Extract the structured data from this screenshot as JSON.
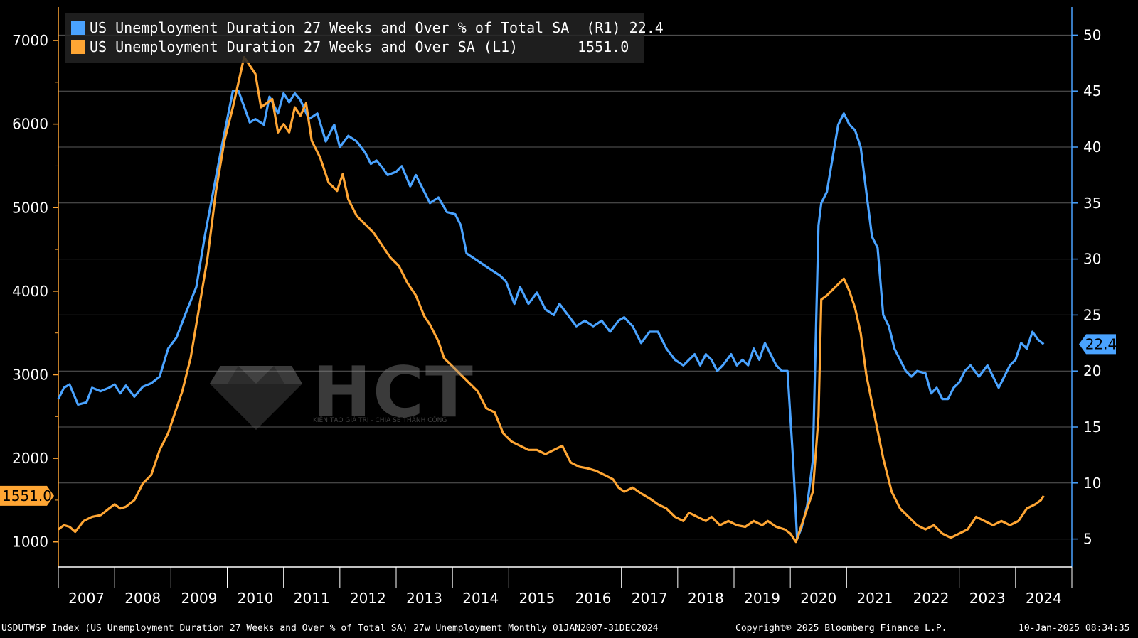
{
  "chart_data": {
    "type": "line",
    "x_range": [
      2007.0,
      2025.0
    ],
    "x_tick_labels": [
      "2007",
      "2008",
      "2009",
      "2010",
      "2011",
      "2012",
      "2013",
      "2014",
      "2015",
      "2016",
      "2017",
      "2018",
      "2019",
      "2020",
      "2021",
      "2022",
      "2023",
      "2024"
    ],
    "y_left": {
      "range": [
        700,
        7400
      ],
      "ticks": [
        1000,
        2000,
        3000,
        4000,
        5000,
        6000,
        7000
      ]
    },
    "y_right": {
      "range": [
        2.5,
        52.5
      ],
      "ticks": [
        5,
        10,
        15,
        20,
        25,
        30,
        35,
        40,
        45,
        50
      ]
    },
    "series": [
      {
        "name": "US Unemployment Duration 27 Weeks and Over % of Total SA",
        "axis": "right",
        "axis_tag": "(R1)",
        "last_value": "22.4",
        "color": "#4aa3ff",
        "points": [
          [
            2007.0,
            17.5
          ],
          [
            2007.1,
            18.5
          ],
          [
            2007.2,
            18.8
          ],
          [
            2007.35,
            17.0
          ],
          [
            2007.5,
            17.2
          ],
          [
            2007.6,
            18.5
          ],
          [
            2007.75,
            18.2
          ],
          [
            2007.9,
            18.5
          ],
          [
            2008.0,
            18.8
          ],
          [
            2008.1,
            18.0
          ],
          [
            2008.2,
            18.7
          ],
          [
            2008.35,
            17.7
          ],
          [
            2008.5,
            18.6
          ],
          [
            2008.65,
            18.9
          ],
          [
            2008.8,
            19.5
          ],
          [
            2008.95,
            22.0
          ],
          [
            2009.1,
            23.0
          ],
          [
            2009.25,
            25.0
          ],
          [
            2009.45,
            27.5
          ],
          [
            2009.6,
            32.0
          ],
          [
            2009.75,
            36.0
          ],
          [
            2009.9,
            40.0
          ],
          [
            2010.0,
            42.5
          ],
          [
            2010.1,
            45.0
          ],
          [
            2010.2,
            45.0
          ],
          [
            2010.4,
            42.2
          ],
          [
            2010.5,
            42.5
          ],
          [
            2010.65,
            42.0
          ],
          [
            2010.75,
            44.5
          ],
          [
            2010.9,
            43.0
          ],
          [
            2011.0,
            44.8
          ],
          [
            2011.1,
            44.0
          ],
          [
            2011.2,
            44.8
          ],
          [
            2011.3,
            44.2
          ],
          [
            2011.45,
            42.5
          ],
          [
            2011.6,
            43.0
          ],
          [
            2011.75,
            40.5
          ],
          [
            2011.9,
            42.0
          ],
          [
            2012.0,
            40.0
          ],
          [
            2012.15,
            41.0
          ],
          [
            2012.3,
            40.5
          ],
          [
            2012.45,
            39.5
          ],
          [
            2012.55,
            38.5
          ],
          [
            2012.65,
            38.8
          ],
          [
            2012.75,
            38.2
          ],
          [
            2012.85,
            37.5
          ],
          [
            2013.0,
            37.8
          ],
          [
            2013.1,
            38.3
          ],
          [
            2013.25,
            36.5
          ],
          [
            2013.35,
            37.5
          ],
          [
            2013.5,
            36.0
          ],
          [
            2013.6,
            35.0
          ],
          [
            2013.75,
            35.5
          ],
          [
            2013.9,
            34.2
          ],
          [
            2014.05,
            34.0
          ],
          [
            2014.15,
            33.0
          ],
          [
            2014.25,
            30.5
          ],
          [
            2014.4,
            30.0
          ],
          [
            2014.55,
            29.5
          ],
          [
            2014.7,
            29.0
          ],
          [
            2014.85,
            28.5
          ],
          [
            2014.95,
            28.0
          ],
          [
            2015.1,
            26.0
          ],
          [
            2015.2,
            27.5
          ],
          [
            2015.35,
            26.0
          ],
          [
            2015.5,
            27.0
          ],
          [
            2015.65,
            25.5
          ],
          [
            2015.8,
            25.0
          ],
          [
            2015.9,
            26.0
          ],
          [
            2016.05,
            25.0
          ],
          [
            2016.2,
            24.0
          ],
          [
            2016.35,
            24.5
          ],
          [
            2016.5,
            24.0
          ],
          [
            2016.65,
            24.5
          ],
          [
            2016.8,
            23.5
          ],
          [
            2016.95,
            24.5
          ],
          [
            2017.05,
            24.8
          ],
          [
            2017.2,
            24.0
          ],
          [
            2017.35,
            22.5
          ],
          [
            2017.5,
            23.5
          ],
          [
            2017.65,
            23.5
          ],
          [
            2017.8,
            22.0
          ],
          [
            2017.95,
            21.0
          ],
          [
            2018.1,
            20.5
          ],
          [
            2018.2,
            21.0
          ],
          [
            2018.3,
            21.5
          ],
          [
            2018.4,
            20.5
          ],
          [
            2018.5,
            21.5
          ],
          [
            2018.6,
            21.0
          ],
          [
            2018.7,
            20.0
          ],
          [
            2018.8,
            20.5
          ],
          [
            2018.95,
            21.5
          ],
          [
            2019.05,
            20.5
          ],
          [
            2019.15,
            21.0
          ],
          [
            2019.25,
            20.5
          ],
          [
            2019.35,
            22.0
          ],
          [
            2019.45,
            21.0
          ],
          [
            2019.55,
            22.5
          ],
          [
            2019.65,
            21.5
          ],
          [
            2019.75,
            20.5
          ],
          [
            2019.85,
            20.0
          ],
          [
            2019.95,
            20.0
          ],
          [
            2020.05,
            12.0
          ],
          [
            2020.12,
            5.0
          ],
          [
            2020.2,
            6.0
          ],
          [
            2020.3,
            8.0
          ],
          [
            2020.4,
            12.0
          ],
          [
            2020.5,
            33.0
          ],
          [
            2020.55,
            35.0
          ],
          [
            2020.65,
            36.0
          ],
          [
            2020.75,
            39.0
          ],
          [
            2020.85,
            42.0
          ],
          [
            2020.95,
            43.0
          ],
          [
            2021.05,
            42.0
          ],
          [
            2021.15,
            41.5
          ],
          [
            2021.25,
            40.0
          ],
          [
            2021.35,
            36.0
          ],
          [
            2021.45,
            32.0
          ],
          [
            2021.55,
            31.0
          ],
          [
            2021.65,
            25.0
          ],
          [
            2021.75,
            24.0
          ],
          [
            2021.85,
            22.0
          ],
          [
            2021.95,
            21.0
          ],
          [
            2022.05,
            20.0
          ],
          [
            2022.15,
            19.5
          ],
          [
            2022.25,
            20.0
          ],
          [
            2022.4,
            19.8
          ],
          [
            2022.5,
            18.0
          ],
          [
            2022.6,
            18.5
          ],
          [
            2022.7,
            17.5
          ],
          [
            2022.8,
            17.5
          ],
          [
            2022.9,
            18.5
          ],
          [
            2023.0,
            19.0
          ],
          [
            2023.1,
            20.0
          ],
          [
            2023.2,
            20.5
          ],
          [
            2023.35,
            19.5
          ],
          [
            2023.5,
            20.5
          ],
          [
            2023.6,
            19.5
          ],
          [
            2023.7,
            18.5
          ],
          [
            2023.8,
            19.5
          ],
          [
            2023.9,
            20.5
          ],
          [
            2024.0,
            21.0
          ],
          [
            2024.1,
            22.5
          ],
          [
            2024.2,
            22.0
          ],
          [
            2024.3,
            23.5
          ],
          [
            2024.4,
            22.8
          ],
          [
            2024.5,
            22.4
          ]
        ]
      },
      {
        "name": "US Unemployment Duration 27 Weeks and Over SA",
        "axis": "left",
        "axis_tag": "(L1)",
        "last_value": "1551.0",
        "color": "#ffa634",
        "points": [
          [
            2007.0,
            1150
          ],
          [
            2007.1,
            1200
          ],
          [
            2007.2,
            1180
          ],
          [
            2007.3,
            1120
          ],
          [
            2007.45,
            1250
          ],
          [
            2007.6,
            1300
          ],
          [
            2007.75,
            1320
          ],
          [
            2007.9,
            1400
          ],
          [
            2008.0,
            1450
          ],
          [
            2008.1,
            1400
          ],
          [
            2008.2,
            1420
          ],
          [
            2008.35,
            1500
          ],
          [
            2008.5,
            1700
          ],
          [
            2008.65,
            1800
          ],
          [
            2008.8,
            2100
          ],
          [
            2008.95,
            2300
          ],
          [
            2009.1,
            2600
          ],
          [
            2009.2,
            2800
          ],
          [
            2009.35,
            3200
          ],
          [
            2009.5,
            3800
          ],
          [
            2009.65,
            4400
          ],
          [
            2009.8,
            5200
          ],
          [
            2009.95,
            5800
          ],
          [
            2010.1,
            6200
          ],
          [
            2010.2,
            6500
          ],
          [
            2010.3,
            6800
          ],
          [
            2010.4,
            6700
          ],
          [
            2010.5,
            6600
          ],
          [
            2010.6,
            6200
          ],
          [
            2010.7,
            6250
          ],
          [
            2010.8,
            6300
          ],
          [
            2010.9,
            5900
          ],
          [
            2011.0,
            6000
          ],
          [
            2011.1,
            5900
          ],
          [
            2011.2,
            6200
          ],
          [
            2011.3,
            6100
          ],
          [
            2011.4,
            6250
          ],
          [
            2011.5,
            5800
          ],
          [
            2011.65,
            5600
          ],
          [
            2011.8,
            5300
          ],
          [
            2011.95,
            5200
          ],
          [
            2012.05,
            5400
          ],
          [
            2012.15,
            5100
          ],
          [
            2012.3,
            4900
          ],
          [
            2012.45,
            4800
          ],
          [
            2012.6,
            4700
          ],
          [
            2012.75,
            4550
          ],
          [
            2012.9,
            4400
          ],
          [
            2013.05,
            4300
          ],
          [
            2013.2,
            4100
          ],
          [
            2013.35,
            3950
          ],
          [
            2013.5,
            3700
          ],
          [
            2013.6,
            3600
          ],
          [
            2013.75,
            3400
          ],
          [
            2013.85,
            3200
          ],
          [
            2014.0,
            3100
          ],
          [
            2014.15,
            3000
          ],
          [
            2014.3,
            2900
          ],
          [
            2014.45,
            2800
          ],
          [
            2014.6,
            2600
          ],
          [
            2014.75,
            2550
          ],
          [
            2014.9,
            2300
          ],
          [
            2015.05,
            2200
          ],
          [
            2015.2,
            2150
          ],
          [
            2015.35,
            2100
          ],
          [
            2015.5,
            2100
          ],
          [
            2015.65,
            2050
          ],
          [
            2015.8,
            2100
          ],
          [
            2015.95,
            2150
          ],
          [
            2016.1,
            1950
          ],
          [
            2016.25,
            1900
          ],
          [
            2016.4,
            1880
          ],
          [
            2016.55,
            1850
          ],
          [
            2016.7,
            1800
          ],
          [
            2016.85,
            1750
          ],
          [
            2016.95,
            1650
          ],
          [
            2017.05,
            1600
          ],
          [
            2017.2,
            1650
          ],
          [
            2017.35,
            1580
          ],
          [
            2017.5,
            1520
          ],
          [
            2017.65,
            1450
          ],
          [
            2017.8,
            1400
          ],
          [
            2017.95,
            1300
          ],
          [
            2018.1,
            1250
          ],
          [
            2018.2,
            1350
          ],
          [
            2018.35,
            1300
          ],
          [
            2018.5,
            1250
          ],
          [
            2018.6,
            1300
          ],
          [
            2018.75,
            1200
          ],
          [
            2018.9,
            1250
          ],
          [
            2019.05,
            1200
          ],
          [
            2019.2,
            1180
          ],
          [
            2019.35,
            1250
          ],
          [
            2019.5,
            1200
          ],
          [
            2019.6,
            1250
          ],
          [
            2019.75,
            1180
          ],
          [
            2019.9,
            1150
          ],
          [
            2020.0,
            1100
          ],
          [
            2020.1,
            1000
          ],
          [
            2020.2,
            1200
          ],
          [
            2020.3,
            1400
          ],
          [
            2020.4,
            1600
          ],
          [
            2020.5,
            2500
          ],
          [
            2020.55,
            3900
          ],
          [
            2020.65,
            3950
          ],
          [
            2020.8,
            4050
          ],
          [
            2020.95,
            4150
          ],
          [
            2021.05,
            4000
          ],
          [
            2021.15,
            3800
          ],
          [
            2021.25,
            3500
          ],
          [
            2021.35,
            3000
          ],
          [
            2021.5,
            2500
          ],
          [
            2021.65,
            2000
          ],
          [
            2021.8,
            1600
          ],
          [
            2021.95,
            1400
          ],
          [
            2022.1,
            1300
          ],
          [
            2022.25,
            1200
          ],
          [
            2022.4,
            1150
          ],
          [
            2022.55,
            1200
          ],
          [
            2022.7,
            1100
          ],
          [
            2022.85,
            1050
          ],
          [
            2023.0,
            1100
          ],
          [
            2023.15,
            1150
          ],
          [
            2023.3,
            1300
          ],
          [
            2023.45,
            1250
          ],
          [
            2023.6,
            1200
          ],
          [
            2023.75,
            1250
          ],
          [
            2023.9,
            1200
          ],
          [
            2024.05,
            1250
          ],
          [
            2024.2,
            1400
          ],
          [
            2024.35,
            1450
          ],
          [
            2024.45,
            1500
          ],
          [
            2024.5,
            1551
          ]
        ]
      }
    ],
    "right_axis_badge": "22.4",
    "left_axis_badge": "1551.0",
    "grid": true,
    "legend_position": "top-left"
  },
  "watermark": {
    "text": "HCT",
    "subtitle": "KIẾN TẠO GIÁ TRỊ - CHIA SẺ THÀNH CÔNG"
  },
  "footer": {
    "left": "USDUTWSP Index (US Unemployment Duration 27 Weeks and Over % of Total SA) 27w Unemployment  Monthly 01JAN2007-31DEC2024",
    "middle": "Copyright® 2025 Bloomberg Finance L.P.",
    "right": "10-Jan-2025 08:34:35"
  }
}
